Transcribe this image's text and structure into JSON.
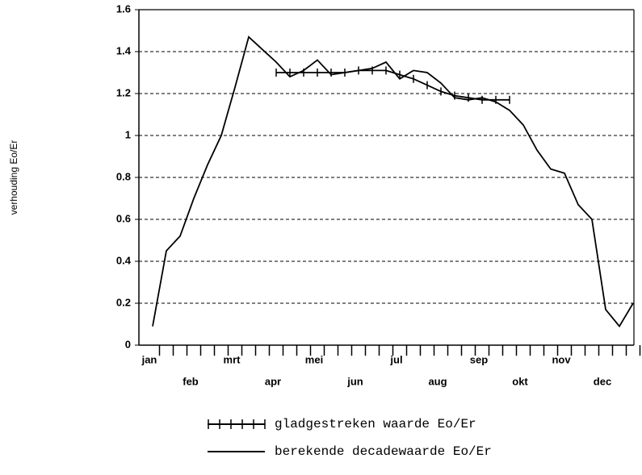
{
  "chart_data": {
    "type": "line",
    "ylabel": "verhouding Eo/Er",
    "categories": [
      "jan",
      null,
      null,
      "feb",
      null,
      null,
      "mrt",
      null,
      null,
      "apr",
      null,
      null,
      "mei",
      null,
      null,
      "jun",
      null,
      null,
      "jul",
      null,
      null,
      "aug",
      null,
      null,
      "sep",
      null,
      null,
      "okt",
      null,
      null,
      "nov",
      null,
      null,
      "dec",
      null,
      null
    ],
    "series": [
      {
        "name": "gladgestreken waarde Eo/Er",
        "color": "#000000",
        "markers": "ticks",
        "values": [
          null,
          null,
          null,
          null,
          null,
          null,
          null,
          null,
          null,
          1.3,
          1.3,
          1.3,
          1.3,
          1.3,
          1.3,
          1.31,
          1.31,
          1.31,
          1.29,
          1.27,
          1.24,
          1.21,
          1.19,
          1.18,
          1.17,
          1.17,
          1.17,
          null,
          null,
          null,
          null,
          null,
          null,
          null,
          null,
          null
        ]
      },
      {
        "name": "berekende decadewaarde Eo/Er",
        "color": "#000000",
        "markers": "none",
        "values": [
          0.09,
          0.45,
          0.52,
          0.7,
          0.86,
          1.0,
          1.23,
          1.47,
          1.41,
          1.35,
          1.28,
          1.31,
          1.36,
          1.29,
          1.3,
          1.31,
          1.32,
          1.35,
          1.27,
          1.31,
          1.3,
          1.25,
          1.18,
          1.17,
          1.18,
          1.16,
          1.12,
          1.05,
          0.93,
          0.84,
          0.82,
          0.67,
          0.6,
          0.17,
          0.09,
          0.2
        ]
      }
    ],
    "ylim": [
      0,
      1.6
    ],
    "yticks": [
      0,
      0.2,
      0.4,
      0.6,
      0.8,
      1,
      1.2,
      1.4,
      1.6
    ],
    "grid": true
  }
}
